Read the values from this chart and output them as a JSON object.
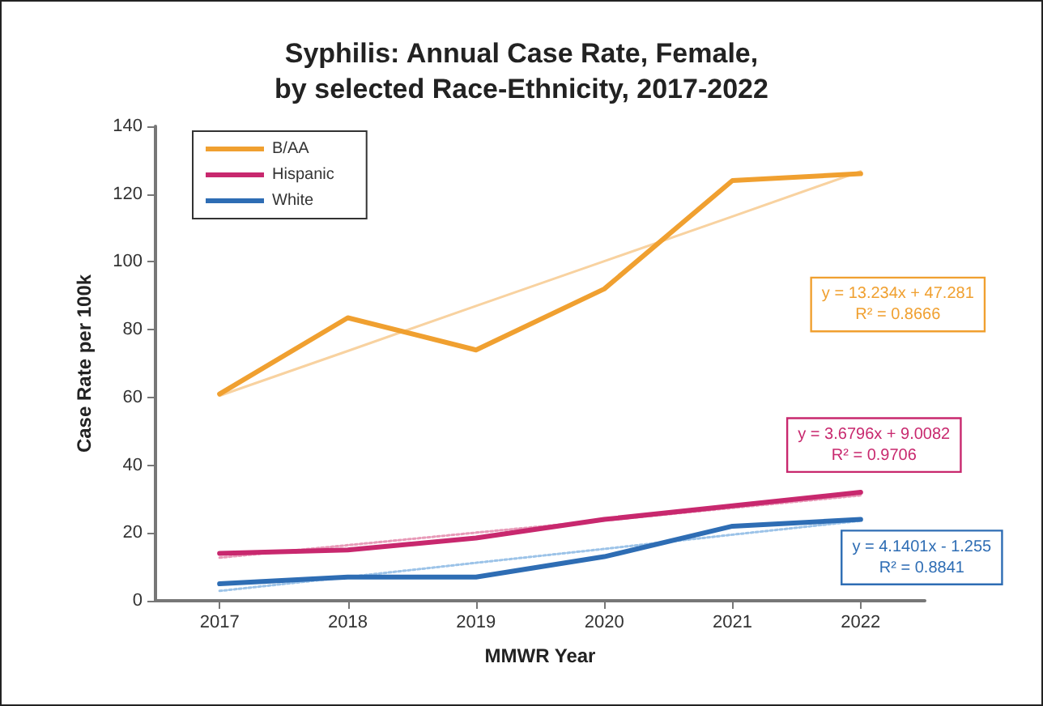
{
  "chart_data": {
    "type": "line",
    "title": "Syphilis: Annual Case Rate, Female,\nby selected Race-Ethnicity, 2017-2022",
    "xlabel": "MMWR Year",
    "ylabel": "Case Rate per 100k",
    "x": [
      2017,
      2018,
      2019,
      2020,
      2021,
      2022
    ],
    "xlim": [
      2016.5,
      2022.5
    ],
    "xticks": [
      2017,
      2018,
      2019,
      2020,
      2021,
      2022
    ],
    "ylim": [
      0,
      140
    ],
    "yticks": [
      0,
      20,
      40,
      60,
      80,
      100,
      120,
      140
    ],
    "grid": false,
    "legend": "top left",
    "marker": "none",
    "line_style": "solid",
    "series": [
      {
        "name": "B/AA",
        "color": "#f0a030",
        "values": [
          61,
          83.5,
          74,
          92,
          124,
          126
        ]
      },
      {
        "name": "Hispanic",
        "color": "#c8286e",
        "values": [
          14,
          15,
          18.5,
          24,
          28,
          32
        ]
      },
      {
        "name": "White",
        "color": "#2e6db4",
        "values": [
          5,
          7,
          7,
          13,
          22,
          24
        ]
      },
      {
        "type": "line",
        "color": "#f8d2a0",
        "line_style": "solid",
        "values": [
          60.5,
          73.7,
          87,
          100.2,
          113.4,
          126.7
        ]
      },
      {
        "type": "line",
        "color": "#e89ab8",
        "line_style": "dotted",
        "values": [
          12.7,
          16.4,
          20.1,
          23.7,
          27.4,
          31.1
        ]
      },
      {
        "type": "line",
        "color": "#9cc3e8",
        "line_style": "dotted",
        "values": [
          2.9,
          7,
          11.2,
          15.3,
          19.5,
          23.6
        ]
      }
    ],
    "annotations": [
      "y = 13.234x + 47.281\nR² = 0.8666",
      "y = 3.6796x + 9.0082\nR² = 0.9706",
      "y = 4.1401x - 1.255\nR² = 0.8841"
    ]
  }
}
